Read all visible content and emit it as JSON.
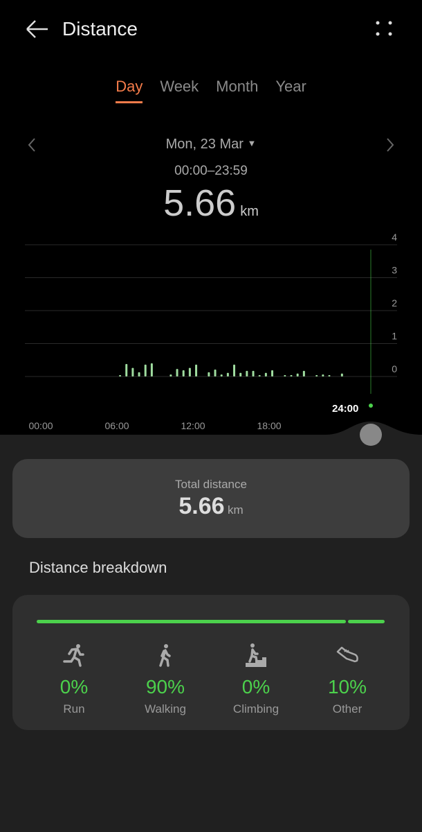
{
  "header": {
    "title": "Distance",
    "back_icon": "arrow-left-icon",
    "menu_icon": "more-vertical-icon"
  },
  "tabs": [
    {
      "label": "Day",
      "active": true
    },
    {
      "label": "Week"
    },
    {
      "label": "Month"
    },
    {
      "label": "Year"
    }
  ],
  "date_nav": {
    "date": "Mon, 23 Mar",
    "time_range": "00:00–23:59"
  },
  "summary": {
    "value": "5.66",
    "unit": "km"
  },
  "colors": {
    "accent": "#f57c4a",
    "bar": "#9fdc9f",
    "green": "#4cd14c"
  },
  "chart_data": {
    "type": "bar",
    "xlabel": "",
    "ylabel": "",
    "x_ticks": [
      "00:00",
      "06:00",
      "12:00",
      "18:00",
      "24:00"
    ],
    "y_ticks": [
      "0",
      "1",
      "2",
      "3",
      "4"
    ],
    "ylim": [
      0,
      4
    ],
    "grid": true,
    "x": [
      "06:00",
      "06:30",
      "07:00",
      "07:30",
      "08:00",
      "08:30",
      "10:00",
      "10:30",
      "11:00",
      "11:30",
      "12:00",
      "13:00",
      "13:30",
      "14:00",
      "14:30",
      "15:00",
      "15:30",
      "16:00",
      "16:30",
      "17:00",
      "17:30",
      "18:00",
      "19:00",
      "19:30",
      "20:00",
      "20:30",
      "21:30",
      "22:00",
      "22:30",
      "23:30"
    ],
    "values": [
      0.03,
      0.38,
      0.26,
      0.13,
      0.36,
      0.4,
      0.06,
      0.23,
      0.19,
      0.26,
      0.36,
      0.13,
      0.21,
      0.06,
      0.11,
      0.36,
      0.11,
      0.17,
      0.17,
      0.04,
      0.11,
      0.19,
      0.04,
      0.04,
      0.09,
      0.17,
      0.04,
      0.06,
      0.04,
      0.09
    ],
    "cursor": "24:00"
  },
  "total": {
    "label": "Total distance",
    "value": "5.66",
    "unit": "km"
  },
  "breakdown": {
    "title": "Distance breakdown",
    "items": [
      {
        "label": "Run",
        "percent": "0%",
        "icon": "running-icon"
      },
      {
        "label": "Walking",
        "percent": "90%",
        "icon": "walking-icon"
      },
      {
        "label": "Climbing",
        "percent": "0%",
        "icon": "climbing-icon"
      },
      {
        "label": "Other",
        "percent": "10%",
        "icon": "shoe-icon"
      }
    ],
    "split": [
      90,
      10
    ]
  }
}
